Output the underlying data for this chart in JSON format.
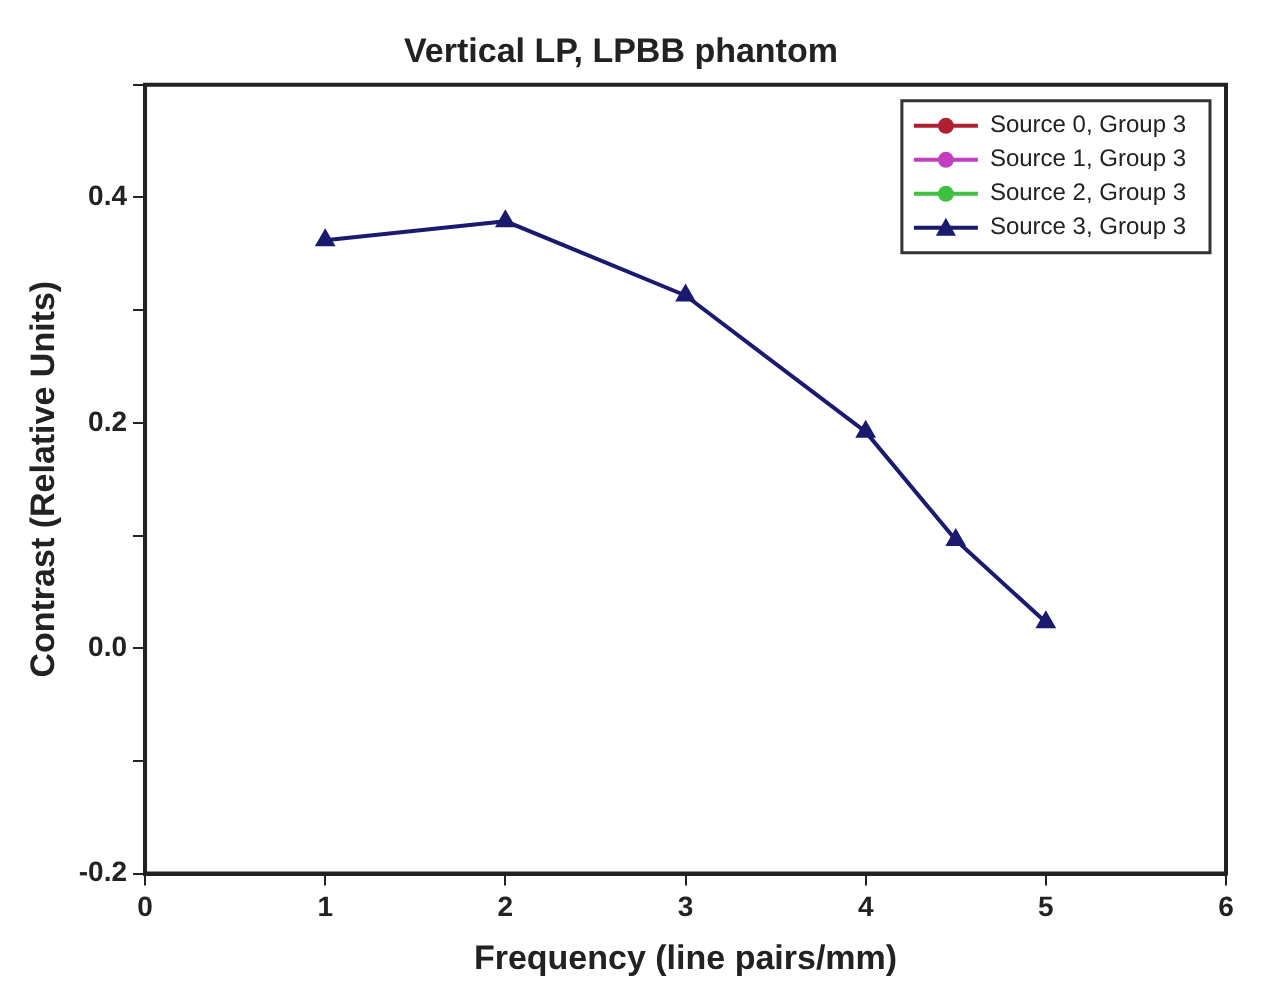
{
  "chart_data": {
    "type": "line",
    "title": "Vertical LP, LPBB phantom",
    "xlabel": "Frequency (line pairs/mm)",
    "ylabel": "Contrast (Relative Units)",
    "x": [
      1,
      2,
      3,
      4,
      4.5,
      5
    ],
    "series": [
      {
        "name": "Source 0, Group 3",
        "color": "#b02030",
        "marker": "circle",
        "values": [
          null,
          null,
          null,
          null,
          null,
          null
        ]
      },
      {
        "name": "Source 1, Group 3",
        "color": "#c040c0",
        "marker": "circle",
        "values": [
          null,
          null,
          null,
          null,
          null,
          null
        ]
      },
      {
        "name": "Source 2, Group 3",
        "color": "#40c040",
        "marker": "circle",
        "values": [
          null,
          null,
          null,
          null,
          null,
          null
        ]
      },
      {
        "name": "Source 3, Group 3",
        "color": "#1a1a6e",
        "marker": "triangle",
        "values": [
          0.362,
          0.379,
          0.313,
          0.192,
          0.096,
          0.023
        ]
      }
    ],
    "xlim": [
      0,
      6
    ],
    "xticks": [
      0,
      1,
      2,
      3,
      4,
      5,
      6
    ],
    "ylim": [
      -0.2,
      0.5
    ],
    "yticks": [
      -0.2,
      {
        "value": -0.1,
        "label": null
      },
      {
        "value": 0,
        "label": "0.0"
      },
      {
        "value": 0.1,
        "label": null
      },
      0.2,
      {
        "value": 0.3,
        "label": null
      },
      0.4,
      {
        "value": 0.5,
        "label": null
      }
    ],
    "legend": "top right",
    "grid": false,
    "line_style": "solid"
  }
}
